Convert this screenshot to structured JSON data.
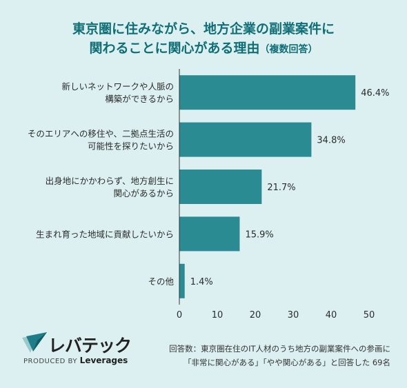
{
  "title_line1": "東京圏に住みながら、地方企業の副業案件に",
  "title_line2": "関わることに関心がある理由",
  "title_suffix": "（複数回答）",
  "brand": {
    "name": "レバテック",
    "produced_by": "PRODUCED BY",
    "company": "Leverages",
    "colors": {
      "primary": "#1e7d86",
      "dark": "#0f5e66"
    }
  },
  "footnote_line1": "回答数：東京圏在住のIT人材のうち地方の副業案件への参画に",
  "footnote_line2": "「非常に関心がある」「やや関心がある」と回答した 69名",
  "chart_data": {
    "type": "bar",
    "orientation": "horizontal",
    "title": "東京圏に住みながら、地方企業の副業案件に関わることに関心がある理由（複数回答）",
    "categories": [
      [
        "新しいネットワークや人脈の",
        "構築ができるから"
      ],
      [
        "そのエリアへの移住や、二拠点生活の",
        "可能性を探りたいから"
      ],
      [
        "出身地にかかわらず、地方創生に",
        "関心があるから"
      ],
      [
        "生まれ育った地域に貢献したいから"
      ],
      [
        "その他"
      ]
    ],
    "values": [
      46.4,
      34.8,
      21.7,
      15.9,
      1.4
    ],
    "value_labels": [
      "46.4%",
      "34.8%",
      "21.7%",
      "15.9%",
      "1.4%"
    ],
    "xlim": [
      0,
      50
    ],
    "xticks": [
      0,
      10,
      20,
      30,
      40,
      50
    ],
    "bar_color": "#2a8b92",
    "grid": false
  }
}
